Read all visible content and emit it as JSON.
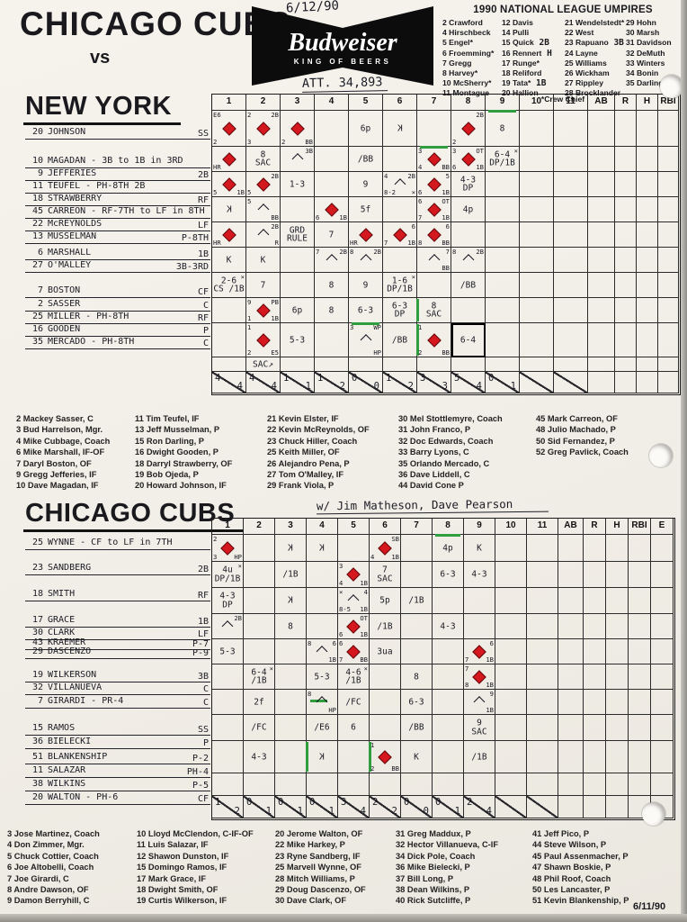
{
  "header": {
    "away_team": "CHICAGO CUBS",
    "vs": "vs",
    "date_hand": "6/12/90",
    "attendance": "ATT. 34,893",
    "logo": {
      "brand": "Budweiser",
      "tagline": "KING OF BEERS"
    }
  },
  "umpires": {
    "title": "1990 NATIONAL LEAGUE UMPIRES",
    "footnote": "*Crew Chief",
    "columns": [
      [
        {
          "t": "2 Crawford"
        },
        {
          "t": "4 Hirschbeck"
        },
        {
          "t": "5 Engel*"
        },
        {
          "t": "6 Froemming*"
        },
        {
          "t": "7 Gregg"
        },
        {
          "t": "8 Harvey*"
        },
        {
          "t": "10 McSherry*"
        },
        {
          "t": "11 Montague"
        }
      ],
      [
        {
          "t": "12 Davis"
        },
        {
          "t": "14 Pulli"
        },
        {
          "t": "15 Quick",
          "note": "2B"
        },
        {
          "t": "16 Rennert",
          "note": "H"
        },
        {
          "t": "17 Runge*"
        },
        {
          "t": "18 Reliford"
        },
        {
          "t": "19 Tata*",
          "note": "1B"
        },
        {
          "t": "20 Hallion"
        }
      ],
      [
        {
          "t": "21 Wendelstedt*"
        },
        {
          "t": "22 West"
        },
        {
          "t": "23 Rapuano",
          "note": "3B"
        },
        {
          "t": "24 Layne"
        },
        {
          "t": "25 Williams"
        },
        {
          "t": "26 Wickham"
        },
        {
          "t": "27 Rippley"
        },
        {
          "t": "28 Brocklander"
        }
      ],
      [
        {
          "t": "29 Hohn"
        },
        {
          "t": "30 Marsh"
        },
        {
          "t": "31 Davidson"
        },
        {
          "t": "32 DeMuth"
        },
        {
          "t": "33 Winters"
        },
        {
          "t": "34 Bonin"
        },
        {
          "t": "35 Darling"
        }
      ]
    ]
  },
  "ny": {
    "title": "NEW YORK",
    "lineup": [
      {
        "num": "20",
        "name": "JOHNSON",
        "pos": "SS"
      },
      {
        "num": "10",
        "name": "MAGADAN - 3B to 1B in 3RD",
        "pos": ""
      },
      {
        "num": "9",
        "name": "JEFFERIES",
        "pos": "2B"
      },
      {
        "num": "11",
        "name": "TEUFEL - PH-8TH  2B",
        "pos": ""
      },
      {
        "num": "18",
        "name": "STRAWBERRY",
        "pos": "RF"
      },
      {
        "num": "45",
        "name": "CARREON - RF-7TH to LF in 8TH",
        "pos": ""
      },
      {
        "num": "22",
        "name": "McREYNOLDS",
        "pos": "LF"
      },
      {
        "num": "13",
        "name": "MUSSELMAN",
        "pos": "P-8TH"
      },
      {
        "num": "6",
        "name": "MARSHALL",
        "pos": "1B"
      },
      {
        "num": "27",
        "name": "O'MALLEY",
        "pos": "3B-3RD"
      },
      {
        "num": "7",
        "name": "BOSTON",
        "pos": "CF"
      },
      {
        "num": "2",
        "name": "SASSER",
        "pos": "C"
      },
      {
        "num": "25",
        "name": "MILLER - PH-8TH",
        "pos": "RF"
      },
      {
        "num": "16",
        "name": "GOODEN",
        "pos": "P"
      },
      {
        "num": "35",
        "name": "MERCADO - PH-8TH",
        "pos": "C"
      }
    ],
    "grid": {
      "cols": [
        "1",
        "2",
        "3",
        "4",
        "5",
        "6",
        "7",
        "8",
        "9",
        "10",
        "11",
        "AB",
        "R",
        "H",
        "RBI"
      ],
      "rows": [
        {
          "cells": {
            "0": {
              "d": 1,
              "tl": "E6",
              "bl": "2"
            },
            "1": {
              "d": 1,
              "tl": "2",
              "tr": "2B",
              "bl": "3"
            },
            "2": {
              "d": 1,
              "bl": "2",
              "br": "BB"
            },
            "4": {
              "t": "6p"
            },
            "5": {
              "rk": 1
            },
            "7": {
              "d": 1,
              "tr": "2B",
              "bl": "2"
            },
            "8": {
              "t": "8",
              "g": "t"
            }
          }
        },
        {
          "cells": {
            "0": {
              "d": 1,
              "bl": "HR"
            },
            "1": {
              "t": "8\nSAC"
            },
            "2": {
              "hf": 1,
              "tr": "3B"
            },
            "4": {
              "t": "/BB"
            },
            "6": {
              "d": 1,
              "tl": "3",
              "bl": "4",
              "br": "BB",
              "g": "t"
            },
            "7": {
              "d": 1,
              "tl": "3",
              "tr": "OT",
              "bl": "6",
              "br": "1B"
            },
            "8": {
              "t": "6-4\nDP/1B",
              "tr": "×"
            }
          }
        },
        {
          "cells": {
            "0": {
              "d": 1,
              "bl": "5",
              "br": "1B"
            },
            "1": {
              "d": 1,
              "tr": "2B",
              "bl": "5"
            },
            "2": {
              "t": "1-3"
            },
            "4": {
              "t": "9"
            },
            "5": {
              "hf": 1,
              "tl": "4",
              "tr": "2B",
              "bl": "8-2",
              "br": "×"
            },
            "6": {
              "d": 1,
              "tr": "5",
              "bl": "6",
              "br": "1B"
            },
            "7": {
              "t": "4-3\nDP"
            }
          }
        },
        {
          "cells": {
            "0": {
              "rk": 1
            },
            "1": {
              "hf": 1,
              "tl": "5",
              "br": "BB"
            },
            "3": {
              "d": 1,
              "bl": "6",
              "br": "1B"
            },
            "4": {
              "t": "5f"
            },
            "6": {
              "d": 1,
              "tl": "6",
              "tr": "OT",
              "bl": "7",
              "br": "1B"
            },
            "7": {
              "t": "4p"
            }
          }
        },
        {
          "cells": {
            "0": {
              "d": 1,
              "bl": "HR"
            },
            "1": {
              "hf": 1,
              "tr": "2B",
              "br": "R"
            },
            "2": {
              "t": "GRD\nRULE"
            },
            "3": {
              "t": "7"
            },
            "4": {
              "d": 1,
              "bl": "HR"
            },
            "5": {
              "d": 1,
              "tr": "6",
              "bl": "7",
              "br": "1B"
            },
            "6": {
              "d": 1,
              "tr": "6",
              "bl": "8",
              "br": "BB"
            }
          }
        },
        {
          "cells": {
            "0": {
              "t": "K"
            },
            "1": {
              "t": "K"
            },
            "3": {
              "hf": 1,
              "tl": "7",
              "tr": "2B"
            },
            "4": {
              "hf": 1,
              "tl": "8",
              "tr": "2B"
            },
            "6": {
              "hf": 1,
              "tr": "7",
              "br": "BB"
            },
            "7": {
              "hf": 1,
              "tl": "8",
              "tr": "2B"
            }
          }
        },
        {
          "cells": {
            "0": {
              "t": "2-6\nCS /1B",
              "tr": "×"
            },
            "1": {
              "t": "7"
            },
            "3": {
              "t": "8"
            },
            "4": {
              "t": "9"
            },
            "5": {
              "t": "1-6\nDP/1B",
              "tr": "×"
            },
            "7": {
              "t": "/BB"
            }
          }
        },
        {
          "cells": {
            "1": {
              "d": 1,
              "tl": "9",
              "tr": "PB",
              "bl": "1",
              "br": "1B"
            },
            "2": {
              "t": "6p"
            },
            "3": {
              "t": "8"
            },
            "4": {
              "t": "6-3"
            },
            "5": {
              "t": "6-3\nDP"
            },
            "6": {
              "t": "8\nSAC",
              "g": "l"
            }
          }
        },
        {
          "cells": {
            "1": {
              "d": 1,
              "tl": "1",
              "bl": "2",
              "br": "E5"
            },
            "2": {
              "t": "5-3"
            },
            "4": {
              "hf": 1,
              "tl": "3",
              "tr": "WP",
              "br": "HP",
              "g": "t"
            },
            "5": {
              "t": "/BB"
            },
            "6": {
              "d": 1,
              "tl": "1",
              "bl": "2",
              "br": "BB",
              "g": "l"
            },
            "7": {
              "t": "6-4",
              "thick": 1
            }
          }
        },
        {
          "cells": {
            "1": {
              "t": "SAC↗"
            }
          }
        }
      ],
      "totals": [
        "4/4",
        "4/4",
        "1/1",
        "1/2",
        "0/0",
        "1/2",
        "3/3",
        "5/4",
        "0/1",
        "/",
        "/",
        "",
        "",
        "",
        ""
      ]
    }
  },
  "cubs": {
    "title": "CHICAGO CUBS",
    "note_hand": "w/ Jim Matheson, Dave Pearson",
    "lineup": [
      {
        "num": "25",
        "name": "WYNNE - CF to LF in 7TH",
        "pos": ""
      },
      {
        "num": "23",
        "name": "SANDBERG",
        "pos": "2B"
      },
      {
        "num": "18",
        "name": "SMITH",
        "pos": "RF"
      },
      {
        "num": "17",
        "name": "GRACE",
        "pos": "1B"
      },
      {
        "num": "30",
        "name": "CLARK",
        "pos": "LF"
      },
      {
        "num": "43",
        "name": "KRAEMER",
        "pos": "P-7"
      },
      {
        "num": "29",
        "name": "DASCENZO",
        "pos": "P-9"
      },
      {
        "num": "19",
        "name": "WILKERSON",
        "pos": "3B"
      },
      {
        "num": "32",
        "name": "VILLANUEVA",
        "pos": "C"
      },
      {
        "num": "7",
        "name": "GIRARDI - PR-4",
        "pos": "C"
      },
      {
        "num": "15",
        "name": "RAMOS",
        "pos": "SS"
      },
      {
        "num": "36",
        "name": "BIELECKI",
        "pos": "P"
      },
      {
        "num": "51",
        "name": "BLANKENSHIP",
        "pos": "P-2"
      },
      {
        "num": "11",
        "name": "SALAZAR",
        "pos": "PH-4"
      },
      {
        "num": "38",
        "name": "WILKINS",
        "pos": "P-5"
      },
      {
        "num": "20",
        "name": "WALTON - PH-6",
        "pos": "CF"
      }
    ],
    "grid": {
      "cols": [
        "1",
        "2",
        "3",
        "4",
        "5",
        "6",
        "7",
        "8",
        "9",
        "10",
        "11",
        "AB",
        "R",
        "H",
        "RBI",
        "E"
      ],
      "rows": [
        {
          "cells": {
            "0": {
              "d": 1,
              "tl": "2",
              "bl": "3",
              "br": "HP"
            },
            "2": {
              "rk": 1
            },
            "3": {
              "rk": 1
            },
            "5": {
              "d": 1,
              "tr": "SB",
              "bl": "4",
              "br": "1B"
            },
            "7": {
              "t": "4p",
              "g": "t"
            },
            "8": {
              "t": "K"
            }
          }
        },
        {
          "cells": {
            "0": {
              "t": "4u\nDP/1B",
              "tr": "×"
            },
            "2": {
              "t": "/1B"
            },
            "4": {
              "d": 1,
              "tl": "3",
              "bl": "4",
              "br": "1B"
            },
            "5": {
              "t": "7\nSAC"
            },
            "7": {
              "t": "6-3"
            },
            "8": {
              "t": "4-3"
            }
          }
        },
        {
          "cells": {
            "0": {
              "t": "4-3\nDP"
            },
            "2": {
              "rk": 1
            },
            "4": {
              "hf": 1,
              "tl": "×",
              "tr": "4",
              "bl": "8-5",
              "br": "1B"
            },
            "5": {
              "t": "5p"
            },
            "6": {
              "t": "/1B"
            }
          }
        },
        {
          "cells": {
            "0": {
              "hf": 1,
              "tr": "2B"
            },
            "2": {
              "t": "8"
            },
            "4": {
              "d": 1,
              "tr": "OT",
              "bl": "6",
              "br": "1B"
            },
            "5": {
              "t": "/1B"
            },
            "7": {
              "t": "4-3"
            }
          }
        },
        {
          "cells": {
            "0": {
              "t": "5-3"
            },
            "3": {
              "hf": 1,
              "tl": "8",
              "tr": "6",
              "br": "1B"
            },
            "4": {
              "d": 1,
              "tl": "6",
              "bl": "7",
              "br": "BB"
            },
            "5": {
              "t": "3ua"
            },
            "8": {
              "d": 1,
              "tr": "6",
              "bl": "7",
              "br": "1B"
            }
          }
        },
        {
          "cells": {
            "1": {
              "t": "6-4\n/1B",
              "tr": "×"
            },
            "3": {
              "t": "5-3"
            },
            "4": {
              "t": "4-6\n/1B",
              "tr": "×"
            },
            "6": {
              "t": "8"
            },
            "8": {
              "d": 1,
              "tl": "7",
              "bl": "8",
              "br": "1B"
            }
          }
        },
        {
          "cells": {
            "1": {
              "t": "2f"
            },
            "3": {
              "hf": 1,
              "tl": "8",
              "br": "HP",
              "g": "b"
            },
            "4": {
              "t": "/FC"
            },
            "6": {
              "t": "6-3"
            },
            "8": {
              "hf": 1,
              "tr": "9",
              "br": "1B"
            }
          }
        },
        {
          "cells": {
            "1": {
              "t": "/FC"
            },
            "3": {
              "t": "/E6"
            },
            "4": {
              "t": "6"
            },
            "6": {
              "t": "/BB"
            },
            "8": {
              "t": "9\nSAC"
            }
          }
        },
        {
          "cells": {
            "1": {
              "t": "4-3"
            },
            "3": {
              "rk": 1,
              "g": "l"
            },
            "5": {
              "d": 1,
              "tl": "1",
              "bl": "2",
              "br": "BB",
              "g": "l"
            },
            "6": {
              "t": "K"
            },
            "8": {
              "t": "/1B"
            }
          }
        },
        {
          "cells": {}
        }
      ],
      "totals": [
        "1/2",
        "0/1",
        "0/1",
        "0/1",
        "3/4",
        "2/2",
        "0/0",
        "0/1",
        "2/4",
        "/",
        "/",
        "",
        "",
        "",
        "",
        ""
      ]
    }
  },
  "ny_roster": {
    "columns": [
      [
        "2 Mackey Sasser, C",
        "3 Bud Harrelson, Mgr.",
        "4 Mike Cubbage, Coach",
        "6 Mike Marshall, IF-OF",
        "7 Daryl Boston, OF",
        "9 Gregg Jefferies, IF",
        "10 Dave Magadan, IF"
      ],
      [
        "11 Tim Teufel, IF",
        "13 Jeff Musselman, P",
        "15 Ron Darling, P",
        "16 Dwight Gooden, P",
        "18 Darryl Strawberry, OF",
        "19 Bob Ojeda, P",
        "20 Howard Johnson, IF"
      ],
      [
        "21 Kevin Elster, IF",
        "22 Kevin McReynolds, OF",
        "23 Chuck Hiller, Coach",
        "25 Keith Miller, OF",
        "26 Alejandro Pena, P",
        "27 Tom O'Malley, IF",
        "29 Frank Viola, P"
      ],
      [
        "30 Mel Stottlemyre, Coach",
        "31 John Franco, P",
        "32 Doc Edwards, Coach",
        "33 Barry Lyons, C",
        "35 Orlando Mercado, C",
        "36 Dave Liddell, C",
        "44 David Cone P"
      ],
      [
        "45 Mark Carreon, OF",
        "48 Julio Machado, P",
        "50 Sid Fernandez, P",
        "52 Greg Pavlick, Coach"
      ]
    ]
  },
  "cubs_roster": {
    "columns": [
      [
        "3 Jose Martinez, Coach",
        "4 Don Zimmer, Mgr.",
        "5 Chuck Cottier, Coach",
        "6 Joe Altobelli, Coach",
        "7 Joe Girardi, C",
        "8 Andre Dawson, OF",
        "9 Damon Berryhill, C"
      ],
      [
        "10 Lloyd McClendon, C-IF-OF",
        "11 Luis Salazar, IF",
        "12 Shawon Dunston, IF",
        "15 Domingo Ramos, IF",
        "17 Mark Grace, IF",
        "18 Dwight Smith, OF",
        "19 Curtis Wilkerson, IF"
      ],
      [
        "20 Jerome Walton, OF",
        "22 Mike Harkey, P",
        "23 Ryne Sandberg, IF",
        "25 Marvell Wynne, OF",
        "28 Mitch Williams, P",
        "29 Doug Dascenzo, OF",
        "30 Dave Clark, OF"
      ],
      [
        "31 Greg Maddux, P",
        "32 Hector Villanueva, C-IF",
        "34 Dick Pole, Coach",
        "36 Mike Bielecki, P",
        "37 Bill Long, P",
        "38 Dean Wilkins, P",
        "40 Rick Sutcliffe, P"
      ],
      [
        "41 Jeff Pico, P",
        "44 Steve Wilson, P",
        "45 Paul Assenmacher, P",
        "47 Shawn Boskie, P",
        "48 Phil Roof, Coach",
        "50 Les Lancaster, P",
        "51 Kevin Blankenship, P"
      ]
    ]
  },
  "footer_date": "6/11/90",
  "colors": {
    "diamond_red": "#d5171e",
    "inning_green": "#2f9e3f",
    "ink": "#1b1b24"
  }
}
